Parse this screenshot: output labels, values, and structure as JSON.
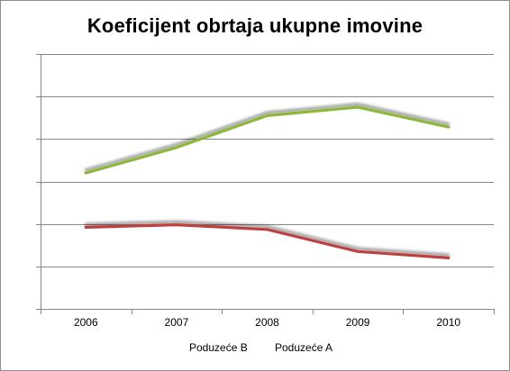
{
  "chart_data": {
    "type": "line",
    "title": "Koeficijent obrtaja ukupne imovine",
    "xlabel": "",
    "ylabel": "",
    "x": [
      "2006",
      "2007",
      "2008",
      "2009",
      "2010"
    ],
    "ylim": [
      0,
      6
    ],
    "y_tick_count": 6,
    "y_tick_labels_visible": false,
    "grid": true,
    "legend_position": "bottom",
    "series": [
      {
        "name": "Poduzeće B",
        "color": "#8db73a",
        "values": [
          3.2,
          3.8,
          4.55,
          4.75,
          4.28
        ]
      },
      {
        "name": "Poduzeće A",
        "color": "#bf4040",
        "values": [
          1.92,
          1.98,
          1.87,
          1.35,
          1.2
        ]
      }
    ]
  }
}
